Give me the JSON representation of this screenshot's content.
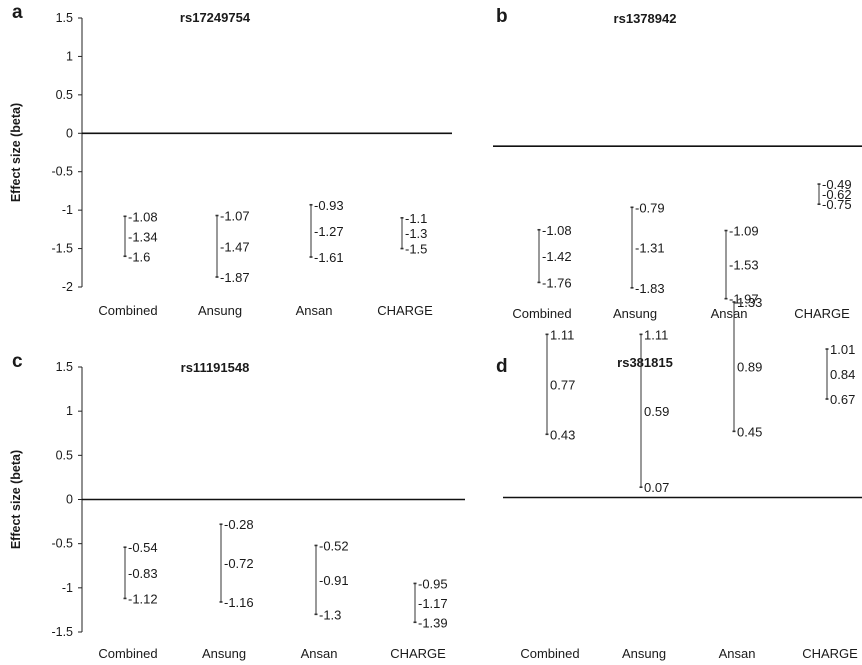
{
  "chart_data": [
    {
      "panel": "a",
      "type": "errorbar",
      "title": "rs17249754",
      "ylabel": "Effect size (beta)",
      "ylim": [
        -2,
        1.5
      ],
      "yticks": [
        "1.5",
        "1",
        "0.5",
        "0",
        "-0.5",
        "-1",
        "-1.5",
        "-2"
      ],
      "categories": [
        "Combined",
        "Ansung",
        "Ansan",
        "CHARGE"
      ],
      "points": [
        {
          "high": -1.08,
          "mid": -1.34,
          "low": -1.6,
          "labels": [
            "-1.08",
            "-1.34",
            "-1.6"
          ]
        },
        {
          "high": -1.07,
          "mid": -1.47,
          "low": -1.87,
          "labels": [
            "-1.07",
            "-1.47",
            "-1.87"
          ]
        },
        {
          "high": -0.93,
          "mid": -1.27,
          "low": -1.61,
          "labels": [
            "-0.93",
            "-1.27",
            "-1.61"
          ]
        },
        {
          "high": -1.1,
          "mid": -1.3,
          "low": -1.5,
          "labels": [
            "-1.1",
            "-1.3",
            "-1.5"
          ]
        }
      ]
    },
    {
      "panel": "b",
      "type": "errorbar",
      "title": "rs1378942",
      "ylabel": "",
      "ylim": [
        -2,
        1.5
      ],
      "yticks": [],
      "categories": [
        "Combined",
        "Ansung",
        "Ansan",
        "CHARGE"
      ],
      "points": [
        {
          "high": -1.08,
          "mid": -1.42,
          "low": -1.76,
          "labels": [
            "-1.08",
            "-1.42",
            "-1.76"
          ]
        },
        {
          "high": -0.79,
          "mid": -1.31,
          "low": -1.83,
          "labels": [
            "-0.79",
            "-1.31",
            "-1.83"
          ]
        },
        {
          "high": -1.09,
          "mid": -1.53,
          "low": -1.97,
          "labels": [
            "-1.09",
            "-1.53",
            "-1.97"
          ]
        },
        {
          "high": -0.49,
          "mid": -0.62,
          "low": -0.75,
          "labels": [
            "-0.49",
            "-0.62",
            "-0.75"
          ]
        }
      ]
    },
    {
      "panel": "c",
      "type": "errorbar",
      "title": "rs11191548",
      "ylabel": "Effect size (beta)",
      "ylim": [
        -1.5,
        1.5
      ],
      "yticks": [
        "1.5",
        "1",
        "0.5",
        "0",
        "-0.5",
        "-1",
        "-1.5"
      ],
      "categories": [
        "Combined",
        "Ansung",
        "Ansan",
        "CHARGE"
      ],
      "points": [
        {
          "high": -0.54,
          "mid": -0.83,
          "low": -1.12,
          "labels": [
            "-0.54",
            "-0.83",
            "-1.12"
          ]
        },
        {
          "high": -0.28,
          "mid": -0.72,
          "low": -1.16,
          "labels": [
            "-0.28",
            "-0.72",
            "-1.16"
          ]
        },
        {
          "high": -0.52,
          "mid": -0.91,
          "low": -1.3,
          "labels": [
            "-0.52",
            "-0.91",
            "-1.3"
          ]
        },
        {
          "high": -0.95,
          "mid": -1.17,
          "low": -1.39,
          "labels": [
            "-0.95",
            "-1.17",
            "-1.39"
          ]
        }
      ]
    },
    {
      "panel": "d",
      "type": "errorbar",
      "title": "rs381815",
      "ylabel": "",
      "ylim": [
        -1.5,
        1.5
      ],
      "yticks": [],
      "categories": [
        "Combined",
        "Ansung",
        "Ansan",
        "CHARGE"
      ],
      "points": [
        {
          "high": 1.11,
          "mid": 0.77,
          "low": 0.43,
          "labels": [
            "1.11",
            "0.77",
            "0.43"
          ]
        },
        {
          "high": 1.11,
          "mid": 0.59,
          "low": 0.07,
          "labels": [
            "1.11",
            "0.59",
            "0.07"
          ]
        },
        {
          "high": 1.33,
          "mid": 0.89,
          "low": 0.45,
          "labels": [
            "1.33",
            "0.89",
            "0.45"
          ]
        },
        {
          "high": 1.01,
          "mid": 0.84,
          "low": 0.67,
          "labels": [
            "1.01",
            "0.84",
            "0.67"
          ]
        }
      ]
    }
  ]
}
